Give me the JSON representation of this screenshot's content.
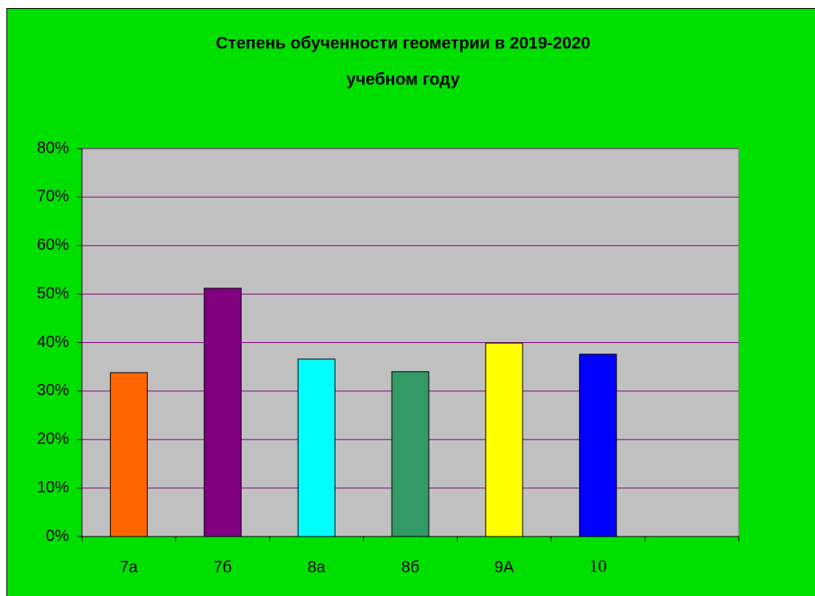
{
  "chart_data": {
    "type": "bar",
    "title": [
      "Степень обученности  геометрии в 2019-2020",
      "учебном году"
    ],
    "categories": [
      "7а",
      "7б",
      "8а",
      "8б",
      "9А",
      "10",
      null
    ],
    "values": [
      33.8,
      51.2,
      36.6,
      34.0,
      39.9,
      37.6,
      null
    ],
    "colors": [
      "#ff6600",
      "#800080",
      "#00ffff",
      "#339966",
      "#ffff00",
      "#0000ff",
      null
    ],
    "ylim": [
      0,
      80
    ],
    "yticks": [
      {
        "value": 0,
        "label": "0%"
      },
      {
        "value": 10,
        "label": "10%"
      },
      {
        "value": 20,
        "label": "20%"
      },
      {
        "value": 30,
        "label": "30%"
      },
      {
        "value": 40,
        "label": "40%"
      },
      {
        "value": 50,
        "label": "50%"
      },
      {
        "value": 60,
        "label": "60%"
      },
      {
        "value": 70,
        "label": "70%"
      },
      {
        "value": 80,
        "label": "80%"
      }
    ],
    "grid": true
  }
}
